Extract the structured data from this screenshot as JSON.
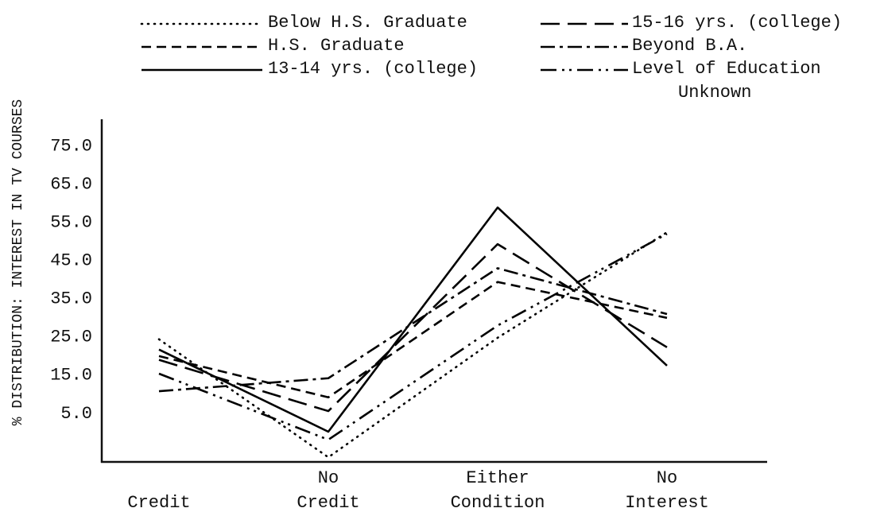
{
  "chart_data": {
    "type": "line",
    "ylabel": "% DISTRIBUTION:  INTEREST IN TV COURSES",
    "categories": [
      "Credit",
      "No Credit",
      "Either Condition",
      "No Interest"
    ],
    "ylim": [
      -7.5,
      82
    ],
    "yticks": [
      {
        "value": 5,
        "label": "5.0"
      },
      {
        "value": 15,
        "label": "15.0"
      },
      {
        "value": 25,
        "label": "25.0"
      },
      {
        "value": 35,
        "label": "35.0"
      },
      {
        "value": 45,
        "label": "45.0"
      },
      {
        "value": 55,
        "label": "55.0"
      },
      {
        "value": 65,
        "label": "65.0"
      },
      {
        "value": 75,
        "label": "75.0"
      }
    ],
    "series": [
      {
        "name": "Below H.S. Graduate",
        "color": "#000000",
        "dash": "dotted",
        "values": [
          24.4,
          -6.5,
          24.8,
          52.4
        ]
      },
      {
        "name": "15-16 yrs. (college)",
        "color": "#000000",
        "dash": "long-dash",
        "values": [
          19,
          5.6,
          49.3,
          22.3
        ]
      },
      {
        "name": "H.S. Graduate",
        "color": "#000000",
        "dash": "dash",
        "values": [
          20,
          9.2,
          39.4,
          30
        ]
      },
      {
        "name": "Beyond B.A.",
        "color": "#000000",
        "dash": "dash-dot",
        "values": [
          10.8,
          14.2,
          43,
          31
        ]
      },
      {
        "name": "13-14 yrs. (college)",
        "color": "#000000",
        "dash": "solid",
        "values": [
          21.7,
          0.2,
          58.9,
          17.5
        ]
      },
      {
        "name": "Level of Education Unknown",
        "color": "#000000",
        "dash": "dash-dot-dot",
        "values": [
          15.4,
          -1.9,
          28,
          52
        ]
      }
    ]
  }
}
